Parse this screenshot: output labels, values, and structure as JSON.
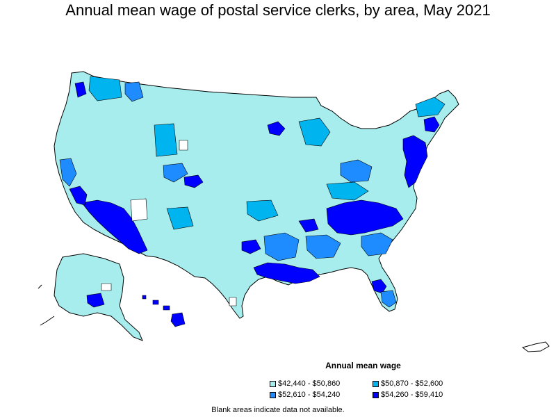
{
  "title": "Annual mean wage of postal service clerks, by area, May 2021",
  "legend": {
    "title": "Annual mean wage",
    "items": [
      {
        "label": "$42,440 - $50,860",
        "color": "#a8eded"
      },
      {
        "label": "$50,870 - $52,600",
        "color": "#00b4f0"
      },
      {
        "label": "$52,610 - $54,240",
        "color": "#1e8cff"
      },
      {
        "label": "$54,260 - $59,410",
        "color": "#0000ff"
      }
    ]
  },
  "footnote": "Blank areas indicate data not available.",
  "colors": {
    "bin1": "#a8eded",
    "bin2": "#00b4f0",
    "bin3": "#1e8cff",
    "bin4": "#0000ff",
    "no_data": "#ffffff",
    "border": "#000000"
  }
}
